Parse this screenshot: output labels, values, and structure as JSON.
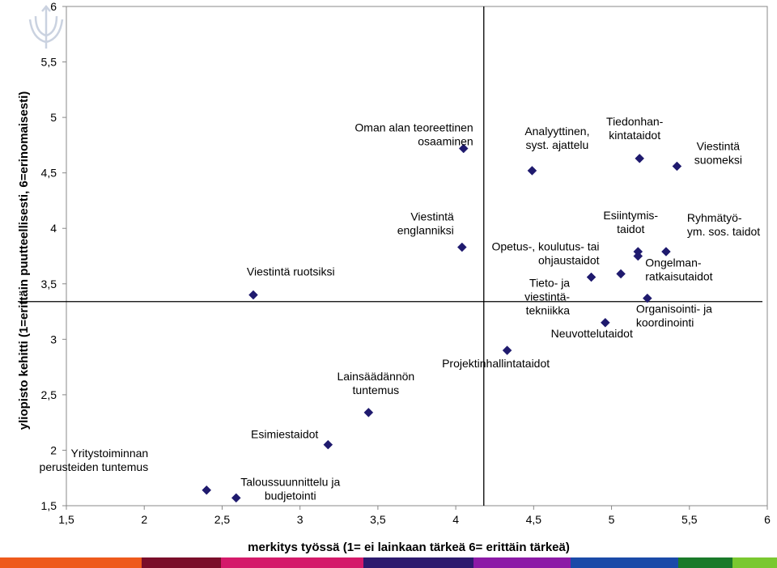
{
  "chart_data": {
    "type": "scatter",
    "title": "",
    "xlabel": "merkitys työssä (1= ei lainkaan tärkeä  6= erittäin tärkeä)",
    "ylabel": "yliopisto kehitti (1=erittäin puutteellisesti, 6=erinomaisesti)",
    "xlim": [
      1.5,
      6
    ],
    "ylim": [
      1.5,
      6
    ],
    "x_ticks": [
      "1,5",
      "2",
      "2,5",
      "3",
      "3,5",
      "4",
      "4,5",
      "5",
      "5,5",
      "6"
    ],
    "y_ticks": [
      "1,5",
      "2",
      "2,5",
      "3",
      "3,5",
      "4",
      "4,5",
      "5",
      "5,5",
      "6"
    ],
    "reference_lines": {
      "x": 4.18,
      "y": 3.34
    },
    "points": [
      {
        "label": [
          "Yritystoiminnan",
          "perusteiden tuntemus"
        ],
        "x": 2.4,
        "y": 1.64
      },
      {
        "label": [
          "Taloussuunnittelu ja",
          "budjetointi"
        ],
        "x": 2.59,
        "y": 1.57
      },
      {
        "label": [
          "Esimiestaidot"
        ],
        "x": 3.18,
        "y": 2.05
      },
      {
        "label": [
          "Viestintä ruotsiksi"
        ],
        "x": 2.7,
        "y": 3.4
      },
      {
        "label": [
          "Lainsäädännön",
          "tuntemus"
        ],
        "x": 3.44,
        "y": 2.34
      },
      {
        "label": [
          "Oman alan teoreettinen",
          "osaaminen"
        ],
        "x": 4.05,
        "y": 4.72
      },
      {
        "label": [
          "Viestintä",
          "englanniksi"
        ],
        "x": 4.04,
        "y": 3.83
      },
      {
        "label": [
          "Projektinhallintataidot"
        ],
        "x": 4.33,
        "y": 2.9
      },
      {
        "label": [
          "Analyyttinen,",
          "syst. ajattelu"
        ],
        "x": 4.49,
        "y": 4.52
      },
      {
        "label": [
          "Tiedonhan-",
          "kintataidot"
        ],
        "x": 5.18,
        "y": 4.63
      },
      {
        "label": [
          "Viestintä",
          "suomeksi"
        ],
        "x": 5.42,
        "y": 4.56
      },
      {
        "label": [
          "Opetus-, koulutus- tai",
          "ohjaustaidot"
        ],
        "x": 4.87,
        "y": 3.56
      },
      {
        "label": [
          "Tieto- ja",
          "viestintä-",
          "tekniikka"
        ],
        "x": 5.06,
        "y": 3.59
      },
      {
        "label": [
          "Esiintymis-",
          "taidot"
        ],
        "x": 5.17,
        "y": 3.79
      },
      {
        "label": [
          "Ryhmätyö-",
          "ym. sos. taidot"
        ],
        "x": 5.35,
        "y": 3.79
      },
      {
        "label": [
          "Ongelman-",
          "ratkaisutaidot"
        ],
        "x": 5.17,
        "y": 3.75
      },
      {
        "label": [
          "Organisointi- ja",
          "koordinointi"
        ],
        "x": 5.23,
        "y": 3.37
      },
      {
        "label": [
          "Neuvottelutaidot"
        ],
        "x": 4.96,
        "y": 3.15
      }
    ],
    "marker_color": "#1f1a6e"
  },
  "footer_colors": [
    "#ee5a1c",
    "#7a0e2a",
    "#d41a6a",
    "#2d1a6e",
    "#8c1aa6",
    "#1a4aa8",
    "#1a7a2a",
    "#7ac830",
    "#6ad0f0"
  ]
}
